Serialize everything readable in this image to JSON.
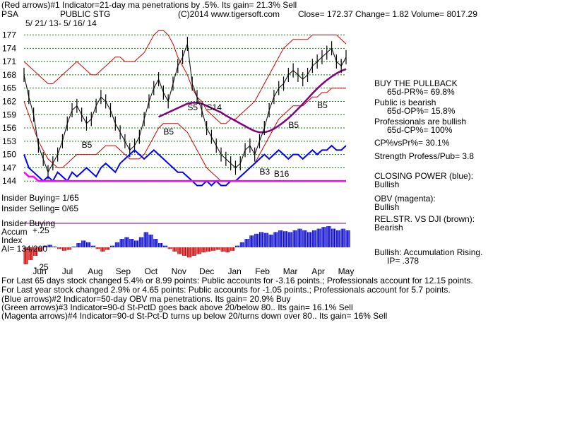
{
  "header": {
    "line1": "(Red arrows)#1 Indicator=21-day ma penetrations by .5%.  Its gain= 21.3% Sell",
    "ticker": "PSA",
    "name": "PUBLIC STG",
    "copyright": "(C)2014 www.tigersoft.com",
    "stats": "Close=  172.37  Change= 1.82 Volume= 8017.29",
    "daterange": "5/ 21/ 13-  5/ 16/ 14"
  },
  "colors": {
    "price": "#000000",
    "bands": "#cc0000",
    "ma65": "#800080",
    "closing_power": "#0000ff",
    "obv": "#ff00ff",
    "grid": "#008000",
    "accum_pos": "#0000cc",
    "accum_neg": "#cc0000"
  },
  "chart_data": {
    "type": "line",
    "title": "PUBLIC STG",
    "ylim": [
      141,
      179
    ],
    "ytick_labels": [
      "177",
      "174",
      "171",
      "168",
      "165",
      "162",
      "159",
      "156",
      "153",
      "150",
      "147",
      "144"
    ],
    "ytick_values": [
      177,
      174,
      171,
      168,
      165,
      162,
      159,
      156,
      153,
      150,
      147,
      144
    ],
    "x_month_labels": [
      "Jun",
      "Jul",
      "Aug",
      "Sep",
      "Oct",
      "Nov",
      "Dec",
      "Jan",
      "Feb",
      "Mar",
      "Apr",
      "May"
    ],
    "grid": true,
    "series": [
      {
        "key": "price",
        "values": [
          168,
          163,
          159,
          152,
          149,
          146,
          148,
          150,
          153,
          157,
          160,
          161,
          159,
          157,
          158,
          161,
          163,
          162,
          160,
          157,
          155,
          153,
          151,
          152,
          154,
          158,
          162,
          165,
          167,
          164,
          162,
          166,
          170,
          172,
          175,
          166,
          163,
          160,
          156,
          154,
          152,
          150,
          149,
          148,
          147,
          148,
          151,
          152,
          150,
          153,
          156,
          160,
          163,
          165,
          166,
          168,
          169,
          168,
          167,
          168,
          170,
          171,
          172,
          173,
          174,
          171,
          170,
          172
        ]
      },
      {
        "key": "upper_band",
        "values": [
          171,
          170,
          169,
          168,
          167,
          166,
          166,
          167,
          168,
          169,
          170,
          171,
          170,
          169,
          168,
          168,
          169,
          170,
          171,
          172,
          172,
          171,
          171,
          171,
          172,
          173,
          175,
          177,
          178,
          178,
          177,
          175,
          172,
          170,
          168,
          165,
          163,
          162,
          160,
          159,
          158,
          157,
          157,
          158,
          158,
          159,
          160,
          161,
          162,
          164,
          166,
          168,
          170,
          172,
          174,
          175,
          176,
          176,
          176,
          176,
          177,
          177,
          177,
          177,
          177,
          177,
          176,
          175
        ]
      },
      {
        "key": "lower_band",
        "values": [
          162,
          159,
          156,
          153,
          151,
          149,
          148,
          147,
          147,
          148,
          149,
          150,
          150,
          150,
          150,
          150,
          151,
          152,
          152,
          152,
          151,
          150,
          149,
          149,
          149,
          150,
          152,
          154,
          156,
          157,
          157,
          157,
          157,
          156,
          155,
          153,
          151,
          149,
          147,
          146,
          145,
          144,
          144,
          144,
          144,
          145,
          146,
          147,
          148,
          150,
          152,
          154,
          156,
          158,
          159,
          160,
          161,
          161,
          161,
          162,
          163,
          163,
          164,
          164,
          165,
          165,
          165,
          165
        ]
      },
      {
        "key": "ma_65",
        "values": [
          null,
          null,
          null,
          null,
          null,
          null,
          null,
          null,
          null,
          null,
          null,
          null,
          null,
          null,
          null,
          null,
          null,
          null,
          null,
          null,
          null,
          null,
          null,
          null,
          null,
          null,
          null,
          null,
          158.5,
          159,
          159.5,
          160,
          160.5,
          161,
          161.5,
          161.7,
          161.7,
          161.5,
          161,
          160.5,
          160,
          159.5,
          158.8,
          158.2,
          157.6,
          157,
          156.4,
          155.8,
          155.3,
          155,
          155,
          155.3,
          155.8,
          156.5,
          157.3,
          158.2,
          159.2,
          160.3,
          161.4,
          162.6,
          163.8,
          164.9,
          165.9,
          166.8,
          167.6,
          168.3,
          168.9,
          169.3
        ]
      },
      {
        "key": "closing_power",
        "values": [
          150,
          147,
          146,
          145,
          144,
          145,
          144,
          146,
          145,
          144,
          146,
          145,
          146,
          147,
          146,
          145,
          147,
          148,
          147,
          146,
          148,
          149,
          150,
          151,
          150,
          149,
          150,
          151,
          150,
          149,
          148,
          147,
          146,
          146,
          145,
          144,
          143,
          143,
          144,
          143,
          144,
          143,
          143,
          144,
          144,
          145,
          146,
          147,
          148,
          149,
          150,
          149,
          150,
          151,
          150,
          149,
          150,
          150,
          149,
          150,
          151,
          150,
          151,
          151,
          152,
          151,
          151,
          152
        ]
      },
      {
        "key": "obv",
        "values": [
          146,
          145,
          145,
          144,
          144,
          144,
          144,
          144,
          144,
          144,
          144,
          144,
          144,
          144,
          144,
          144,
          144,
          144,
          144,
          144,
          144,
          144,
          144,
          144,
          144,
          144,
          144,
          144,
          144,
          144,
          144,
          144,
          144,
          144,
          144,
          144,
          144,
          144,
          144,
          144,
          144,
          144,
          144,
          144,
          144,
          144,
          144,
          144,
          144,
          144,
          144,
          144,
          144,
          144,
          144,
          144,
          144,
          144,
          144,
          144,
          144,
          144,
          144,
          144,
          144,
          144,
          144,
          144
        ]
      },
      {
        "key": "accumulation",
        "values": [
          -0.2,
          -0.15,
          -0.1,
          -0.05,
          0.02,
          0.03,
          0.01,
          -0.02,
          -0.04,
          -0.03,
          0.01,
          0.05,
          0.08,
          0.06,
          0.02,
          -0.02,
          -0.05,
          -0.03,
          0.02,
          0.06,
          0.1,
          0.12,
          0.1,
          0.08,
          0.12,
          0.18,
          0.15,
          0.1,
          0.05,
          0.02,
          -0.02,
          -0.05,
          -0.08,
          -0.1,
          -0.12,
          -0.1,
          -0.08,
          -0.06,
          -0.05,
          -0.04,
          -0.03,
          -0.05,
          -0.06,
          -0.04,
          0.02,
          0.06,
          0.1,
          0.14,
          0.16,
          0.18,
          0.17,
          0.15,
          0.18,
          0.2,
          0.19,
          0.18,
          0.2,
          0.22,
          0.2,
          0.18,
          0.2,
          0.22,
          0.24,
          0.25,
          0.22,
          0.2,
          0.22,
          0.2
        ]
      }
    ],
    "annotations": [
      {
        "text": "B5",
        "x": 12,
        "y": 151.5
      },
      {
        "text": "B5",
        "x": 29,
        "y": 154.5
      },
      {
        "text": "S5",
        "x": 34,
        "y": 160
      },
      {
        "text": "S14",
        "x": 38,
        "y": 160
      },
      {
        "text": "B5",
        "x": 55,
        "y": 156
      },
      {
        "text": "B5",
        "x": 61,
        "y": 160.5
      },
      {
        "text": "B3",
        "x": 49,
        "y": 145.5
      },
      {
        "text": "B16",
        "x": 52,
        "y": 145
      }
    ]
  },
  "right_panel": {
    "buy": "BUY THE PULLBACK",
    "prpct": "65d-PR%= 69.8%",
    "public": "Public is bearish",
    "oppct": "65d-OP%= 15.8%",
    "prof": "Professionals are bullish",
    "cppct": "65d-CP%= 100%",
    "cpvspr": "CP%vsPr%=  30.1%",
    "strength": "Strength Profess/Pub= 3.8",
    "closing_label": "CLOSING POWER (blue):",
    "closing_val": "Bullish",
    "obv_label": "OBV (magenta):",
    "obv_val": "Bullish",
    "rel_label": "REL.STR. VS DJI (brown):",
    "rel_val": "Bearish",
    "accum": "Bullish: Accumulation Rising.",
    "ip": "IP=  .378"
  },
  "left_panel": {
    "insider_buying": "Insider Buying= 1/65",
    "insider_selling": "Insider Selling= 0/65",
    "insider_buying2": "Insider Buying",
    "accum": "Accum",
    "plus25": "+.25",
    "index": "Index",
    "ai": "AI= 134/200",
    "minus25": "-.25"
  },
  "footer": {
    "line1": "For Last 65 days stock changed  5.4% or  8.99 points:  Public accounts for -3.16 points.;  Professionals account for  12.15 points.",
    "line2": "For Last year stock changed  2.9% or  4.65 points:  Public accounts for -1.05 points.;  Professionals account for  5.7 points.",
    "line3": "(Blue arrows)#2 Indicator=50-day OBV ma penetrations. Its gain= 20.9% Buy",
    "line4": "(Green arrows)#3 Indicator=90-d St-PctD goes back above 20/below 80.. Its gain= 16.1% Sell",
    "line5": "(Magenta arrows)#4 Indicator=90-d St-Pct-D turns up below 20/turns down over 80.. Its gain= 16% Sell"
  }
}
